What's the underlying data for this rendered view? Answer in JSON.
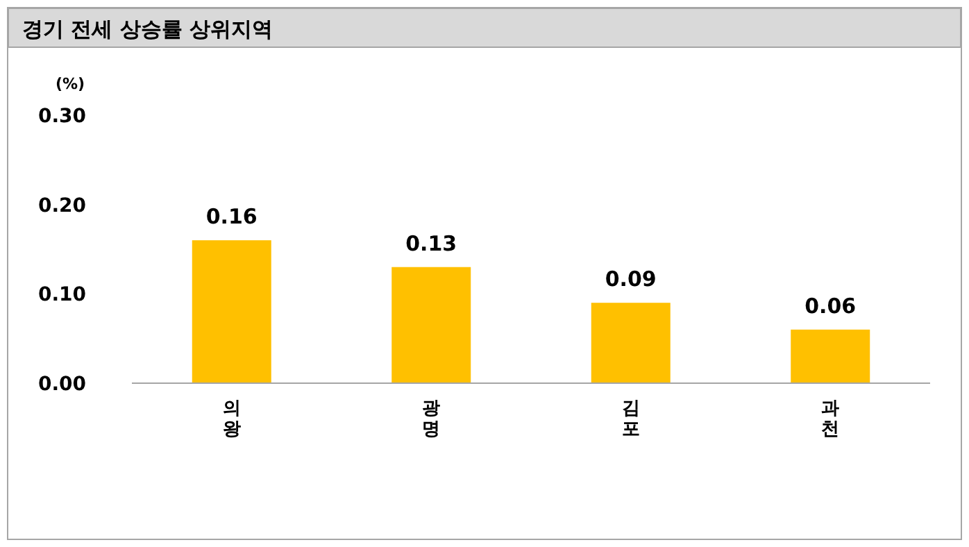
{
  "chart_data": {
    "type": "bar",
    "title": "경기 전세 상승률 상위지역",
    "ylabel": "(%)",
    "categories": [
      "의왕",
      "광명",
      "김포",
      "과천"
    ],
    "series": [
      {
        "color": "#ffc000",
        "values": [
          0.16,
          0.13,
          0.09,
          0.06
        ]
      }
    ],
    "ylim": [
      0,
      0.3
    ],
    "yticks": [
      {
        "value": 0,
        "label": "0.00"
      },
      {
        "value": 0.1,
        "label": "0.10"
      },
      {
        "value": 0.2,
        "label": "0.20"
      },
      {
        "value": 0.3,
        "label": "0.30"
      }
    ],
    "data_labels": true,
    "grid": false
  }
}
